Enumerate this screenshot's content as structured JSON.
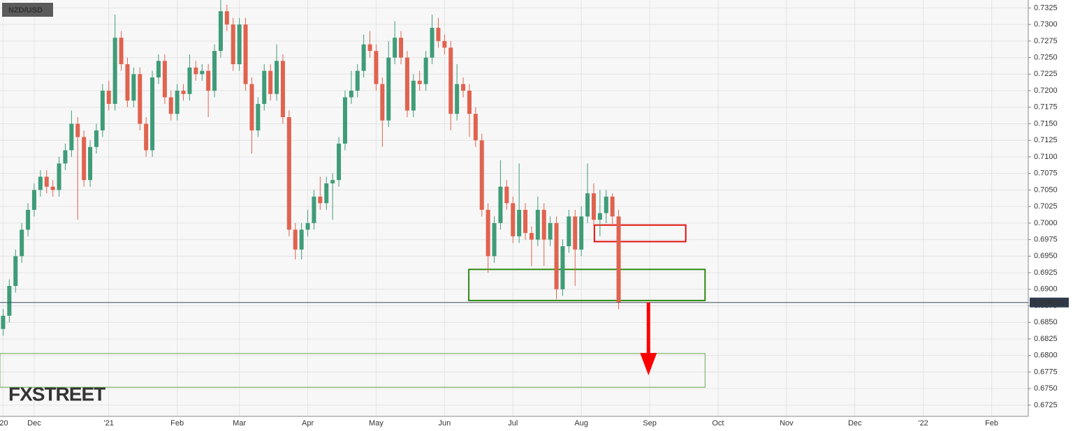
{
  "chart_data": {
    "type": "candlestick",
    "title": "NZD/USD",
    "watermark": "FXSTREET",
    "categories": [
      "'20",
      null,
      null,
      null,
      null,
      "Dec",
      null,
      null,
      null,
      null,
      null,
      null,
      null,
      null,
      null,
      null,
      null,
      "'21",
      null,
      null,
      null,
      null,
      null,
      null,
      null,
      null,
      null,
      null,
      "Feb",
      null,
      null,
      null,
      null,
      null,
      null,
      null,
      null,
      null,
      "Mar",
      null,
      null,
      null,
      null,
      null,
      null,
      null,
      null,
      null,
      null,
      "Apr",
      null,
      null,
      null,
      null,
      null,
      null,
      null,
      null,
      null,
      null,
      "May",
      null,
      null,
      null,
      null,
      null,
      null,
      null,
      null,
      null,
      null,
      "Jun",
      null,
      null,
      null,
      null,
      null,
      null,
      null,
      null,
      null,
      null,
      "Jul",
      null,
      null,
      null,
      null,
      null,
      null,
      null,
      null,
      null,
      null,
      "Aug",
      null,
      null,
      null,
      null,
      null,
      null,
      null,
      null,
      null,
      null,
      "Sep",
      null,
      null,
      null,
      null,
      null,
      null,
      null,
      null,
      null,
      null,
      "Oct",
      null,
      null,
      null,
      null,
      null,
      null,
      null,
      null,
      null,
      null,
      "Nov",
      null,
      null,
      null,
      null,
      null,
      null,
      null,
      null,
      null,
      null,
      "Dec",
      null,
      null,
      null,
      null,
      null,
      null,
      null,
      null,
      null,
      null,
      "'22",
      null,
      null,
      null,
      null,
      null,
      null,
      null,
      null,
      null,
      null,
      "Feb",
      null,
      null,
      null,
      null,
      null
    ],
    "open": [
      0.684,
      0.686,
      0.6905,
      0.695,
      0.699,
      0.702,
      0.705,
      0.707,
      0.7055,
      0.705,
      0.709,
      0.711,
      0.715,
      0.713,
      0.7065,
      0.7115,
      0.714,
      0.72,
      0.718,
      0.728,
      0.724,
      0.7185,
      0.7225,
      0.715,
      0.711,
      0.722,
      0.7245,
      0.719,
      0.7165,
      0.72,
      0.7195,
      0.7235,
      0.7225,
      0.723,
      0.72,
      0.726,
      0.732,
      0.73,
      0.724,
      0.73,
      0.721,
      0.714,
      0.718,
      0.723,
      0.7195,
      0.7245,
      0.716,
      0.699,
      0.696,
      0.699,
      0.7,
      0.704,
      0.703,
      0.706,
      0.7065,
      0.712,
      0.719,
      0.72,
      0.723,
      0.727,
      0.726,
      0.721,
      0.7155,
      0.725,
      0.728,
      0.725,
      0.717,
      0.7215,
      0.721,
      0.725,
      0.7295,
      0.7275,
      0.7265,
      0.7165,
      0.721,
      0.72,
      0.7165,
      0.7125,
      0.702,
      0.695,
      0.7,
      0.7055,
      0.703,
      0.698,
      0.702,
      0.6985,
      0.6975,
      0.702,
      0.6975,
      0.7,
      0.69,
      0.6965,
      0.701,
      0.696,
      0.701,
      0.7045,
      0.7005,
      0.7015,
      0.704,
      0.701,
      null,
      null,
      null,
      null,
      null,
      null,
      null,
      null,
      null,
      null,
      null,
      null,
      null,
      null,
      null,
      null,
      null,
      null,
      null,
      null,
      null,
      null,
      null,
      null,
      null,
      null,
      null,
      null,
      null,
      null,
      null,
      null,
      null,
      null,
      null,
      null,
      null,
      null,
      null,
      null,
      null,
      null,
      null,
      null,
      null,
      null,
      null,
      null,
      null,
      null,
      null,
      null,
      null,
      null,
      null,
      null,
      null,
      null,
      null,
      null,
      null,
      null,
      null,
      null,
      null
    ],
    "high": [
      0.687,
      0.6915,
      0.696,
      0.7,
      0.703,
      0.706,
      0.708,
      0.708,
      0.7065,
      0.71,
      0.712,
      0.717,
      0.716,
      0.714,
      0.7125,
      0.715,
      0.721,
      0.7215,
      0.7315,
      0.729,
      0.725,
      0.7235,
      0.7235,
      0.716,
      0.723,
      0.7255,
      0.7255,
      0.72,
      0.721,
      0.721,
      0.7255,
      0.7245,
      0.724,
      0.724,
      0.727,
      0.734,
      0.733,
      0.731,
      0.731,
      0.731,
      0.722,
      0.719,
      0.724,
      0.724,
      0.727,
      0.7255,
      0.717,
      0.7,
      0.7,
      0.702,
      0.705,
      0.707,
      0.707,
      0.7075,
      0.713,
      0.72,
      0.723,
      0.724,
      0.7285,
      0.729,
      0.727,
      0.722,
      0.7275,
      0.7305,
      0.729,
      0.726,
      0.7225,
      0.723,
      0.726,
      0.7315,
      0.731,
      0.7285,
      0.7275,
      0.724,
      0.722,
      0.721,
      0.7175,
      0.7135,
      0.703,
      0.701,
      0.7095,
      0.7065,
      0.704,
      0.709,
      0.703,
      0.6995,
      0.704,
      0.703,
      0.701,
      0.701,
      0.6975,
      0.702,
      0.702,
      0.7025,
      0.709,
      0.706,
      0.705,
      0.705,
      0.7045,
      0.702,
      null,
      null,
      null,
      null,
      null,
      null,
      null,
      null,
      null,
      null,
      null,
      null,
      null,
      null,
      null,
      null,
      null,
      null,
      null,
      null,
      null,
      null,
      null,
      null,
      null,
      null,
      null,
      null,
      null,
      null,
      null,
      null,
      null,
      null,
      null,
      null,
      null,
      null,
      null,
      null,
      null,
      null,
      null,
      null,
      null,
      null,
      null,
      null,
      null,
      null,
      null,
      null,
      null,
      null,
      null,
      null,
      null,
      null,
      null,
      null,
      null,
      null,
      null,
      null,
      null
    ],
    "low": [
      0.683,
      0.685,
      0.6895,
      0.694,
      0.698,
      0.701,
      0.704,
      0.7045,
      0.704,
      0.704,
      0.708,
      0.71,
      0.7005,
      0.7055,
      0.7055,
      0.7105,
      0.713,
      0.717,
      0.717,
      0.723,
      0.7175,
      0.7175,
      0.714,
      0.71,
      0.71,
      0.721,
      0.718,
      0.7155,
      0.7155,
      0.7185,
      0.7185,
      0.7215,
      0.7215,
      0.716,
      0.719,
      0.725,
      0.729,
      0.723,
      0.723,
      0.72,
      0.7105,
      0.713,
      0.717,
      0.7185,
      0.7185,
      0.715,
      0.698,
      0.6945,
      0.6945,
      0.698,
      0.699,
      0.702,
      0.702,
      0.7005,
      0.7055,
      0.711,
      0.718,
      0.719,
      0.722,
      0.725,
      0.72,
      0.7115,
      0.7145,
      0.724,
      0.724,
      0.716,
      0.716,
      0.72,
      0.72,
      0.724,
      0.7265,
      0.7255,
      0.714,
      0.7155,
      0.719,
      0.713,
      0.7115,
      0.701,
      0.6925,
      0.694,
      0.699,
      0.702,
      0.697,
      0.697,
      0.6975,
      0.6935,
      0.6965,
      0.6935,
      0.6965,
      0.6885,
      0.689,
      0.6955,
      0.6905,
      0.695,
      0.7,
      0.6995,
      0.698,
      0.7,
      0.6995,
      0.687,
      null,
      null,
      null,
      null,
      null,
      null,
      null,
      null,
      null,
      null,
      null,
      null,
      null,
      null,
      null,
      null,
      null,
      null,
      null,
      null,
      null,
      null,
      null,
      null,
      null,
      null,
      null,
      null,
      null,
      null,
      null,
      null,
      null,
      null,
      null,
      null,
      null,
      null,
      null,
      null,
      null,
      null,
      null,
      null,
      null,
      null,
      null,
      null,
      null,
      null,
      null,
      null,
      null,
      null,
      null,
      null,
      null,
      null,
      null,
      null,
      null,
      null,
      null,
      null,
      null
    ],
    "close": [
      0.686,
      0.6905,
      0.695,
      0.699,
      0.702,
      0.705,
      0.707,
      0.7055,
      0.705,
      0.709,
      0.711,
      0.715,
      0.713,
      0.7065,
      0.7115,
      0.714,
      0.72,
      0.718,
      0.728,
      0.724,
      0.7185,
      0.7225,
      0.715,
      0.711,
      0.722,
      0.7245,
      0.719,
      0.7165,
      0.72,
      0.7195,
      0.7235,
      0.7225,
      0.723,
      0.72,
      0.726,
      0.732,
      0.73,
      0.724,
      0.73,
      0.721,
      0.714,
      0.718,
      0.723,
      0.7195,
      0.7245,
      0.716,
      0.699,
      0.696,
      0.699,
      0.7,
      0.704,
      0.703,
      0.706,
      0.7065,
      0.712,
      0.719,
      0.72,
      0.723,
      0.727,
      0.726,
      0.721,
      0.7155,
      0.725,
      0.728,
      0.725,
      0.717,
      0.7215,
      0.721,
      0.725,
      0.7295,
      0.7275,
      0.7265,
      0.7165,
      0.721,
      0.72,
      0.7165,
      0.7125,
      0.702,
      0.695,
      0.7,
      0.7055,
      0.703,
      0.698,
      0.702,
      0.6985,
      0.6975,
      0.702,
      0.6975,
      0.7,
      0.69,
      0.6965,
      0.701,
      0.696,
      0.701,
      0.7045,
      0.7005,
      0.7015,
      0.704,
      0.701,
      0.688,
      null,
      null,
      null,
      null,
      null,
      null,
      null,
      null,
      null,
      null,
      null,
      null,
      null,
      null,
      null,
      null,
      null,
      null,
      null,
      null,
      null,
      null,
      null,
      null,
      null,
      null,
      null,
      null,
      null,
      null,
      null,
      null,
      null,
      null,
      null,
      null,
      null,
      null,
      null,
      null,
      null,
      null,
      null,
      null,
      null,
      null,
      null,
      null,
      null,
      null,
      null,
      null,
      null,
      null,
      null,
      null,
      null,
      null,
      null,
      null,
      null,
      null,
      null,
      null,
      null
    ],
    "up_color": "#3f9c78",
    "down_color": "#e0634f",
    "ylim": [
      0.6708,
      0.7337
    ],
    "yticks": [
      0.6725,
      {
        "value": 0.675,
        "label": "0.6750"
      },
      0.6775,
      {
        "value": 0.68,
        "label": "0.6800"
      },
      0.6825,
      {
        "value": 0.685,
        "label": "0.6850"
      },
      0.6875,
      {
        "value": 0.69,
        "label": "0.6900"
      },
      0.6925,
      {
        "value": 0.695,
        "label": "0.6950"
      },
      0.6975,
      {
        "value": 0.7,
        "label": "0.7000"
      },
      0.7025,
      {
        "value": 0.705,
        "label": "0.7050"
      },
      0.7075,
      {
        "value": 0.71,
        "label": "0.7100"
      },
      0.7125,
      {
        "value": 0.715,
        "label": "0.7150"
      },
      0.7175,
      {
        "value": 0.72,
        "label": "0.7200"
      },
      0.7225,
      {
        "value": 0.725,
        "label": "0.7250"
      },
      0.7275,
      {
        "value": 0.73,
        "label": "0.7300"
      },
      0.7325
    ],
    "grid": true,
    "last_price": {
      "value": 0.688,
      "label": "0.688000"
    },
    "zones": [
      {
        "color": "#e01010",
        "xlim": [
          95.6,
          110.3
        ],
        "ylim": [
          0.6972,
          0.6997
        ]
      },
      {
        "color": "#2f8a10",
        "xlim": [
          75.4,
          113.4
        ],
        "ylim": [
          0.6883,
          0.693
        ]
      },
      {
        "color": "#6aa84f",
        "xlim": [
          0,
          113.4
        ],
        "ylim": [
          0.6752,
          0.6803
        ]
      }
    ],
    "arrow": {
      "color": "#ff0000",
      "x": 104.3,
      "ylim": [
        0.677,
        0.688
      ]
    }
  }
}
